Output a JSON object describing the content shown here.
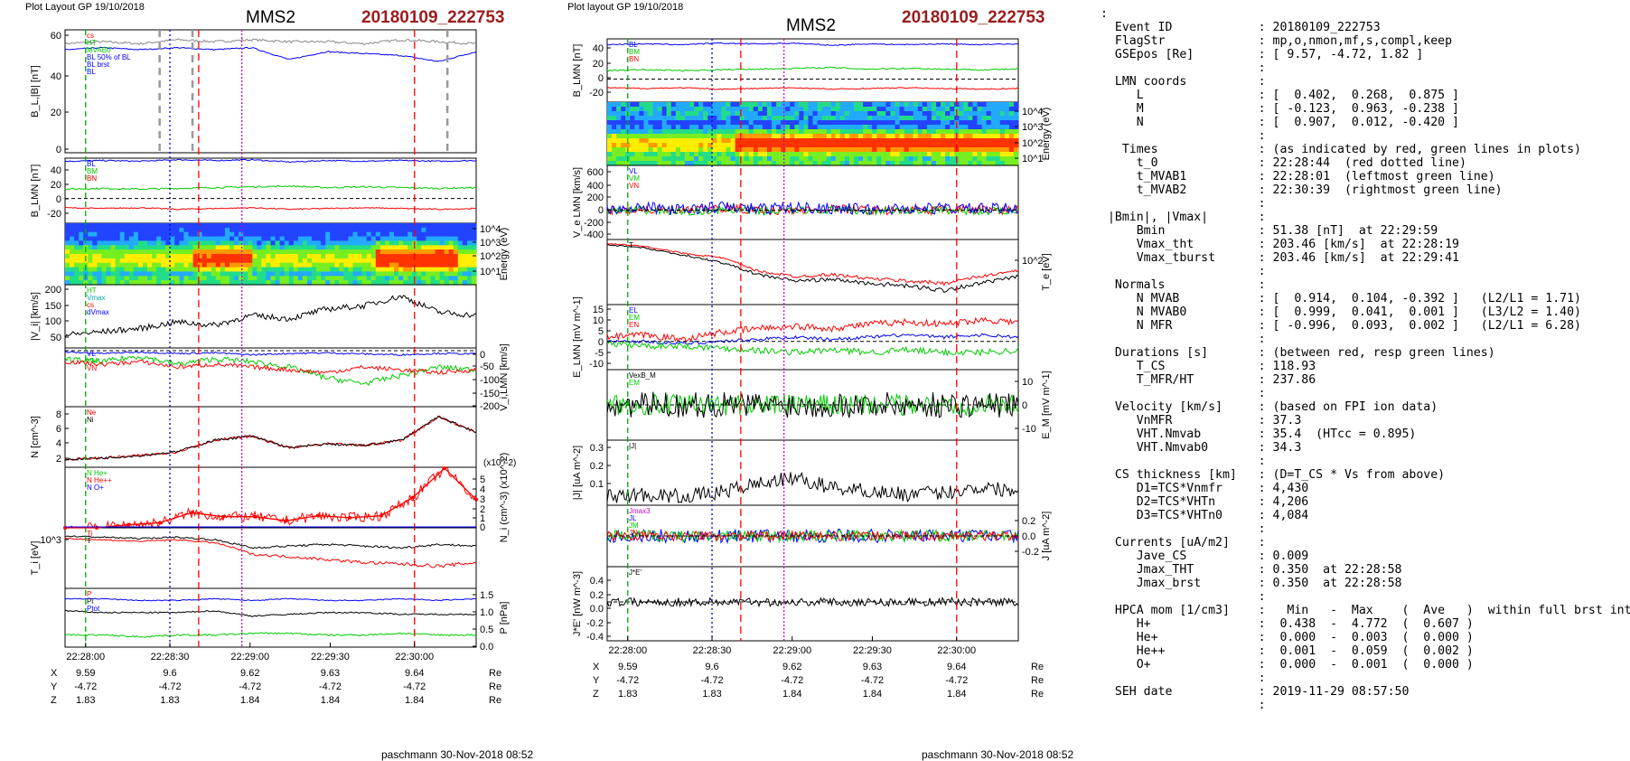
{
  "left": {
    "header": "Plot Layout GP 19/10/2018",
    "spacecraft": "MMS2",
    "event": "20180109_222753",
    "footer": "paschmann 30-Nov-2018 08:52",
    "time_ticks": [
      "22:28:00",
      "22:28:30",
      "22:29:00",
      "22:29:30",
      "22:30:00"
    ],
    "pos_rows": [
      {
        "label": "X",
        "vals": [
          "9.59",
          "9.6",
          "9.62",
          "9.63",
          "9.64"
        ],
        "unit": "Re"
      },
      {
        "label": "Y",
        "vals": [
          "-4.72",
          "-4.72",
          "-4.72",
          "-4.72",
          "-4.72"
        ],
        "unit": "Re"
      },
      {
        "label": "Z",
        "vals": [
          "1.83",
          "1.83",
          "1.84",
          "1.84",
          "1.84"
        ],
        "unit": "Re"
      }
    ]
  },
  "middle": {
    "header": "Plot layout GP 19/10/2018",
    "spacecraft": "MMS2",
    "event": "20180109_222753",
    "footer": "paschmann 30-Nov-2018 08:52",
    "time_ticks": [
      "22:28:00",
      "22:28:30",
      "22:29:00",
      "22:29:30",
      "22:30:00"
    ],
    "pos_rows": [
      {
        "label": "X",
        "vals": [
          "9.59",
          "9.6",
          "9.62",
          "9.63",
          "9.64"
        ],
        "unit": "Re"
      },
      {
        "label": "Y",
        "vals": [
          "-4.72",
          "-4.72",
          "-4.72",
          "-4.72",
          "-4.72"
        ],
        "unit": "Re"
      },
      {
        "label": "Z",
        "vals": [
          "1.83",
          "1.83",
          "1.84",
          "1.84",
          "1.84"
        ],
        "unit": "Re"
      }
    ]
  },
  "chart_data": [
    {
      "type": "line",
      "title": "MMS2 20180109_222753",
      "x_range": [
        "22:27:44",
        "22:30:44"
      ],
      "vertical_markers": {
        "red_dashed": [
          "22:28:44",
          "22:30:00"
        ],
        "magenta_dotted": "22:29:05",
        "green_dashed": "22:28:01",
        "blue_dotted": "22:28:23"
      },
      "panels": [
        {
          "ylabel": "B_L,|B| [nT]",
          "ylim": [
            0,
            60
          ],
          "ticks": [
            "60",
            "40",
            "20",
            "0"
          ],
          "legend": [
            "cs",
            "HT",
            "MVAB0",
            "BL 50% of BL",
            "BL brst",
            "BL"
          ],
          "series": [
            {
              "name": "|B|",
              "color": "#888888",
              "values": [
                55,
                56,
                55,
                57,
                56,
                57,
                56,
                56,
                55,
                57,
                56,
                55
              ]
            },
            {
              "name": "BL",
              "color": "#0000ff",
              "values": [
                52,
                53,
                52,
                53,
                52,
                53,
                47,
                51,
                50,
                49,
                46,
                51
              ]
            }
          ]
        },
        {
          "ylabel": "B_LMN [nT]",
          "ylim": [
            -30,
            50
          ],
          "ticks": [
            "40",
            "20",
            "0",
            "-20"
          ],
          "legend": [
            "BL",
            "BM",
            "BN"
          ],
          "series": [
            {
              "name": "BL",
              "color": "#0000ff",
              "values": [
                48,
                49,
                48,
                50,
                49,
                50,
                47,
                49,
                48,
                49,
                48,
                49
              ]
            },
            {
              "name": "BM",
              "color": "#00cc00",
              "values": [
                12,
                13,
                12,
                13,
                14,
                15,
                16,
                14,
                15,
                14,
                13,
                14
              ]
            },
            {
              "name": "BN",
              "color": "#ff0000",
              "values": [
                -12,
                -13,
                -12,
                -14,
                -13,
                -12,
                -14,
                -13,
                -12,
                -13,
                -14,
                -13
              ]
            }
          ]
        },
        {
          "ylabel": "Energy (eV)",
          "type": "heatmap",
          "ticks": [
            "10^4",
            "10^3",
            "10^2",
            "10^1"
          ]
        },
        {
          "ylabel": "|V_i| [km/s]",
          "ylim": [
            0,
            210
          ],
          "ticks": [
            "200",
            "150",
            "100",
            "50"
          ],
          "legend": [
            "HT",
            "Vmax",
            "cs",
            "dVmax"
          ],
          "series": [
            {
              "name": "|Vi|",
              "color": "#000000",
              "values": [
                60,
                70,
                80,
                100,
                90,
                120,
                110,
                140,
                150,
                180,
                130,
                120
              ]
            }
          ]
        },
        {
          "ylabel": "V_i,LMN [km/s]",
          "ylim": [
            -200,
            10
          ],
          "ticks": [
            "0",
            "-50",
            "-100",
            "-150",
            "-200"
          ],
          "legend": [
            "VL",
            "VM",
            "VN"
          ],
          "series": [
            {
              "name": "VL",
              "color": "#0000ff",
              "values": [
                -5,
                -10,
                -5,
                -10,
                -8,
                -15,
                -10,
                -8,
                -12,
                -15,
                -10,
                -12
              ]
            },
            {
              "name": "VM",
              "color": "#00cc00",
              "values": [
                -30,
                -40,
                -20,
                -50,
                -30,
                -40,
                -60,
                -100,
                -120,
                -90,
                -60,
                -70
              ]
            },
            {
              "name": "VN",
              "color": "#ff0000",
              "values": [
                -40,
                -50,
                -40,
                -60,
                -50,
                -60,
                -70,
                -80,
                -60,
                -70,
                -80,
                -70
              ]
            }
          ]
        },
        {
          "ylabel": "N [cm^-3]",
          "ylim": [
            1,
            8.5
          ],
          "ticks": [
            "8",
            "6",
            "4",
            "2"
          ],
          "legend": [
            "Ne",
            "Ni"
          ],
          "series": [
            {
              "name": "Ne",
              "color": "#ff0000",
              "values": [
                2,
                2.2,
                2.5,
                3,
                4.5,
                5,
                3.5,
                4,
                3.8,
                4.5,
                7.5,
                5.5
              ]
            },
            {
              "name": "Ni",
              "color": "#000000",
              "values": [
                2,
                2.2,
                2.5,
                3,
                4.5,
                5,
                3.5,
                4,
                3.8,
                4.5,
                7.5,
                5.5
              ]
            }
          ]
        },
        {
          "ylabel": "N_i (cm^-3) (x10^-2)",
          "ylim": [
            0,
            5
          ],
          "ticks": [
            "5",
            "4",
            "3",
            "2",
            "1",
            "0"
          ],
          "legend": [
            "N He+",
            "N He++",
            "N O+"
          ],
          "series": [
            {
              "name": "N He++",
              "color": "#ff0000",
              "values": [
                0,
                0,
                0.3,
                0.5,
                1.5,
                1.1,
                1.1,
                0.7,
                1.2,
                1.0,
                1.2,
                3.0,
                5.9,
                2.8
              ]
            }
          ]
        },
        {
          "ylabel": "T_i [eV]",
          "ticks": [
            "10^3"
          ],
          "legend": [
            "Ti",
            "T"
          ],
          "series": [
            {
              "name": "T",
              "color": "#000000",
              "values": [
                1100,
                1050,
                1000,
                1050,
                950,
                700,
                750,
                800,
                750,
                700,
                800,
                750
              ]
            },
            {
              "name": "Ti",
              "color": "#ff0000",
              "values": [
                1000,
                950,
                900,
                950,
                850,
                550,
                500,
                450,
                400,
                380,
                350,
                400
              ]
            }
          ]
        },
        {
          "ylabel": "P [nPa]",
          "ylim": [
            0,
            1.7
          ],
          "ticks": [
            "1.5",
            "1.0",
            "0.5",
            "0.0"
          ],
          "legend": [
            "P",
            "Pi",
            "Ptot"
          ],
          "series": [
            {
              "name": "Ptot",
              "color": "#0000ff",
              "values": [
                1.4,
                1.4,
                1.35,
                1.35,
                1.4,
                1.35,
                1.4,
                1.35,
                1.35,
                1.4,
                1.35,
                1.4
              ]
            },
            {
              "name": "Pi",
              "color": "#000000",
              "values": [
                1.05,
                1.0,
                1.0,
                1.0,
                1.05,
                0.9,
                0.95,
                1.0,
                1.0,
                0.95,
                0.95,
                0.95
              ]
            },
            {
              "name": "P",
              "color": "#00cc00",
              "values": [
                0.35,
                0.35,
                0.3,
                0.35,
                0.35,
                0.4,
                0.4,
                0.35,
                0.35,
                0.4,
                0.35,
                0.35
              ]
            }
          ]
        }
      ]
    },
    {
      "type": "line",
      "title": "MMS2 20180109_222753",
      "x_range": [
        "22:27:44",
        "22:30:44"
      ],
      "panels": [
        {
          "ylabel": "B_LMN [nT]",
          "ylim": [
            -30,
            55
          ],
          "ticks": [
            "40",
            "20",
            "0",
            "-20"
          ],
          "legend": [
            "BL",
            "BM",
            "BN"
          ]
        },
        {
          "ylabel": "Energy (eV)",
          "type": "heatmap",
          "ticks": [
            "10^4",
            "10^3",
            "10^2",
            "10^1"
          ]
        },
        {
          "ylabel": "V_e LMN [km/s]",
          "ylim": [
            -450,
            700
          ],
          "ticks": [
            "600",
            "400",
            "200",
            "0",
            "-200",
            "-400"
          ],
          "legend": [
            "VL",
            "VM",
            "VN"
          ]
        },
        {
          "ylabel": "T_e [eV]",
          "ticks": [
            "10^2"
          ],
          "legend": [
            "T"
          ]
        },
        {
          "ylabel": "E_LMN [mV m^-1]",
          "ylim": [
            -12,
            16
          ],
          "ticks": [
            "15",
            "10",
            "5",
            "0",
            "-5",
            "-10"
          ],
          "legend": [
            "EL",
            "EM",
            "EN"
          ]
        },
        {
          "ylabel": "E_M [mV m^-1]",
          "ylim": [
            -14,
            14
          ],
          "ticks": [
            "10",
            "0",
            "-10"
          ],
          "legend": [
            "VexB_M",
            "EM"
          ]
        },
        {
          "ylabel": "|J| [uA m^-2]",
          "ylim": [
            0,
            0.35
          ],
          "ticks": [
            "0.3",
            "0.2",
            "0.1"
          ],
          "legend": [
            "|J|"
          ]
        },
        {
          "ylabel": "J [uA m^-2]",
          "ylim": [
            -0.3,
            0.3
          ],
          "ticks": [
            "0.2",
            "0.0",
            "-0.2"
          ],
          "legend": [
            "Jmax3",
            "JL",
            "JM",
            "JN"
          ]
        },
        {
          "ylabel": "J*E' [nW m^-3]",
          "ylim": [
            -0.5,
            0.5
          ],
          "ticks": [
            "0.4",
            "0.2",
            "0.0",
            "-0.2",
            "-0.4"
          ],
          "legend": [
            "J*E'"
          ]
        }
      ]
    }
  ],
  "info": {
    "lines": [
      ":",
      "  Event ID            : 20180109_222753",
      "  FlagStr             : mp,o,nmon,mf,s,compl,keep",
      "  GSEpos [Re]         : [ 9.57, -4.72, 1.82 ]",
      "                      :",
      "  LMN coords          :",
      "     L                : [  0.402,  0.268,  0.875 ]",
      "     M                : [ -0.123,  0.963, -0.238 ]",
      "     N                : [  0.907,  0.012, -0.420 ]",
      "                      :",
      "   Times              : (as indicated by red, green lines in plots)",
      "     t_0              : 22:28:44  (red dotted line)",
      "     t_MVAB1          : 22:28:01  (leftmost green line)",
      "     t_MVAB2          : 22:30:39  (rightmost green line)",
      "                      :",
      " |Bmin|, |Vmax|       :",
      "     Bmin             : 51.38 [nT]  at 22:29:59",
      "     Vmax_tht         : 203.46 [km/s]  at 22:28:19",
      "     Vmax_tburst      : 203.46 [km/s]  at 22:29:41",
      "                      :",
      "  Normals             :",
      "     N MVAB           : [  0.914,  0.104, -0.392 ]   (L2/L1 = 1.71)",
      "     N MVAB0          : [  0.999,  0.041,  0.001 ]   (L3/L2 = 1.40)",
      "     N MFR            : [ -0.996,  0.093,  0.002 ]   (L2/L1 = 6.28)",
      "                      :",
      "  Durations [s]       : (between red, resp green lines)",
      "     T_CS             : 118.93",
      "     T_MFR/HT         : 237.86",
      "                      :",
      "  Velocity [km/s]     : (based on FPI ion data)",
      "     VnMFR            : 37.3",
      "     VHT.Nmvab        : 35.4  (HTcc = 0.895)",
      "     VHT.Nmvab0       : 34.3",
      "                      :",
      "  CS thickness [km]   : (D=T_CS * Vs from above)",
      "     D1=TCS*Vnmfr     : 4,430",
      "     D2=TCS*VHTn      : 4,206",
      "     D3=TCS*VHTn0     : 4,084",
      "                      :",
      "  Currents [uA/m2]    :",
      "     Jave_CS          : 0.009",
      "     Jmax_THT         : 0.350  at 22:28:58",
      "     Jmax_brst        : 0.350  at 22:28:58",
      "                      :",
      "  HPCA mom [1/cm3]    :   Min   -  Max    (  Ave   )  within full brst int",
      "     H+               :  0.438  -  4.772  (  0.607 )",
      "     He+              :  0.000  -  0.003  (  0.000 )",
      "     He++             :  0.001  -  0.059  (  0.002 )",
      "     O+               :  0.000  -  0.001  (  0.000 )",
      "                      :",
      "  SEH date            : 2019-11-29 08:57:50",
      "                      :"
    ]
  },
  "colors": {
    "event_red": "#9b1c1c",
    "BL": "#0000ff",
    "BM": "#00cc00",
    "BN": "#ff0000"
  }
}
